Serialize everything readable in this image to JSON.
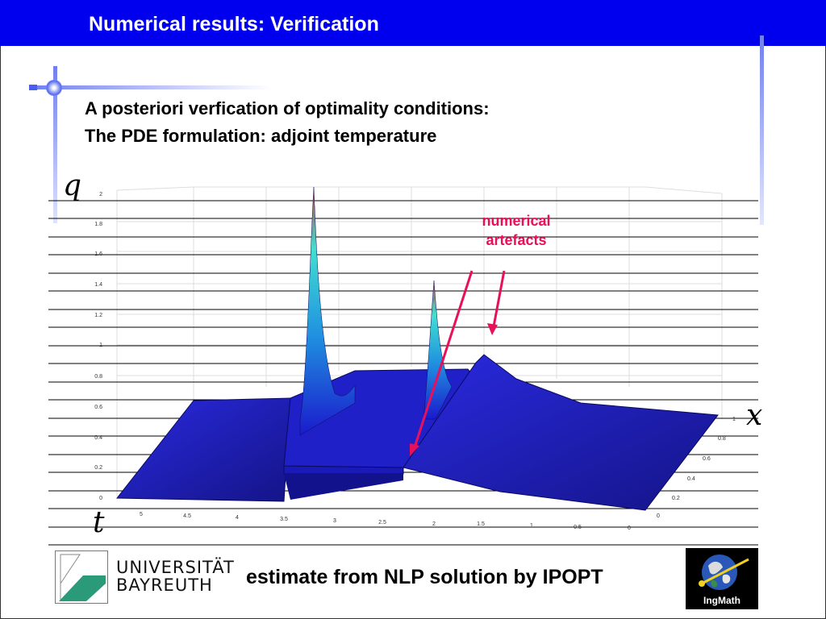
{
  "header": {
    "title": "Numerical results: Verification"
  },
  "heading": {
    "line1": "A posteriori verfication of optimality conditions:",
    "line2": "The PDE formulation: adjoint temperature"
  },
  "plot": {
    "axis_q": "q",
    "axis_x": "x",
    "axis_t": "t",
    "q_ticks": [
      "2",
      "1.8",
      "1.6",
      "1.4",
      "1.2",
      "1",
      "0.8",
      "0.6",
      "0.4",
      "0.2",
      "0"
    ],
    "t_ticks": [
      "5",
      "4.5",
      "4",
      "3.5",
      "3",
      "2.5",
      "2",
      "1.5",
      "1",
      "0.5",
      "0"
    ],
    "x_ticks": [
      "0",
      "0.2",
      "0.4",
      "0.6",
      "0.8",
      "1"
    ],
    "annotation_line1": "numerical",
    "annotation_line2": "artefacts",
    "colors": {
      "surface": "#1a1acc",
      "annotation": "#e8105a"
    }
  },
  "footer": {
    "caption": "estimate from NLP solution by IPOPT",
    "university_line1": "UNIVERSITÄT",
    "university_line2": "BAYREUTH",
    "ingmath_label": "IngMath"
  },
  "colors": {
    "header": "#0000ee",
    "decoration": "#6f7ff0",
    "logo_green": "#2a9a78"
  }
}
